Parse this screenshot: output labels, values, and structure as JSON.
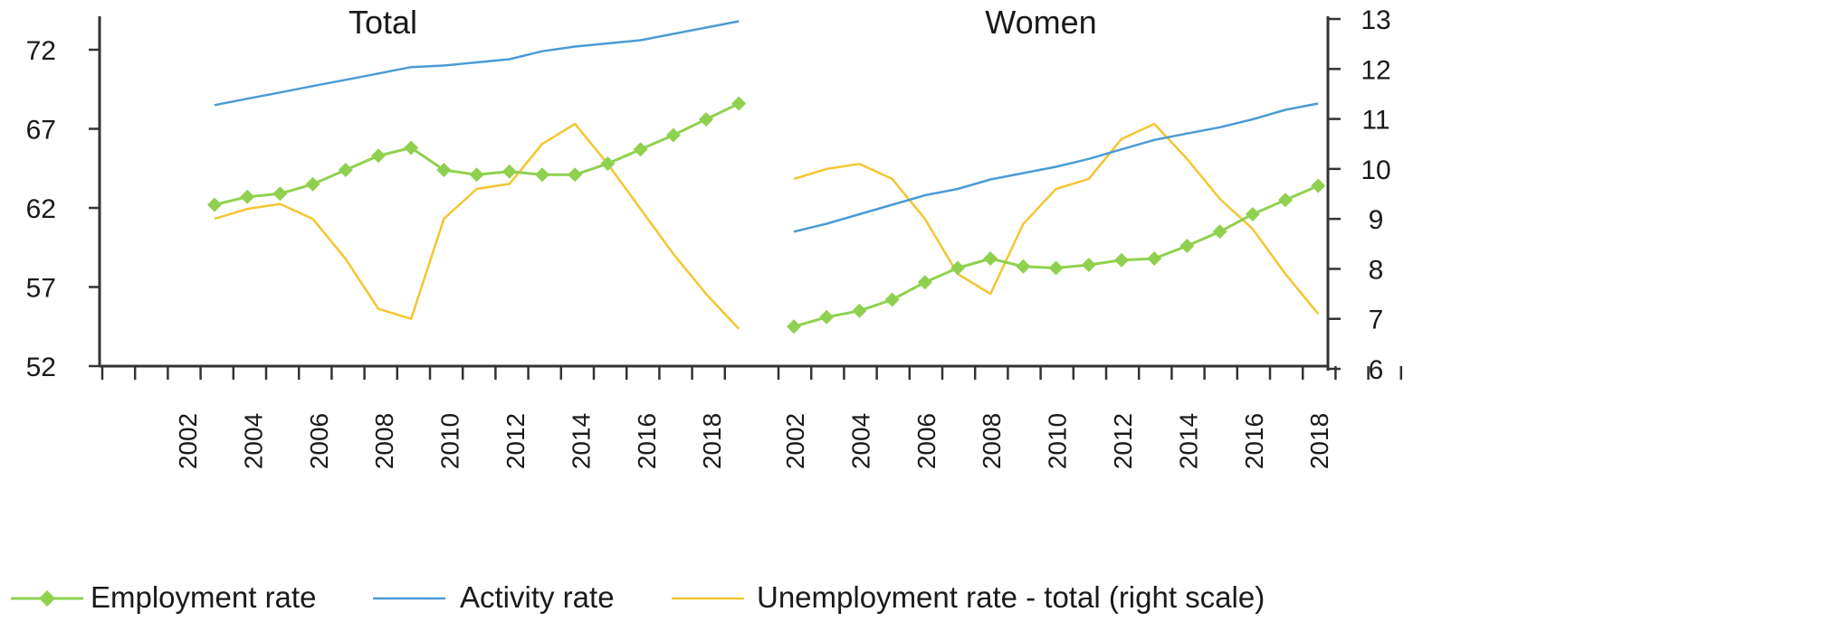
{
  "chart_data": {
    "type": "line",
    "panels": [
      {
        "title": "Total",
        "x_tick_labels": [
          "2002",
          "2004",
          "2006",
          "2008",
          "2010",
          "2012",
          "2014",
          "2016",
          "2018"
        ],
        "x": [
          2003,
          2004,
          2005,
          2006,
          2007,
          2008,
          2009,
          2010,
          2011,
          2012,
          2013,
          2014,
          2015,
          2016,
          2017,
          2018,
          2019
        ],
        "series": [
          {
            "name": "Employment rate",
            "axis": "left",
            "values": [
              62.2,
              62.7,
              62.9,
              63.5,
              64.4,
              65.3,
              65.8,
              64.4,
              64.1,
              64.3,
              64.1,
              64.1,
              64.8,
              65.7,
              66.6,
              67.6,
              68.6
            ]
          },
          {
            "name": "Activity rate",
            "axis": "left",
            "values": [
              68.5,
              68.9,
              69.3,
              69.7,
              70.1,
              70.5,
              70.9,
              71.0,
              71.2,
              71.4,
              71.9,
              72.2,
              72.4,
              72.6,
              73.0,
              73.4,
              73.8
            ]
          },
          {
            "name": "Unemployment rate - total (right scale)",
            "axis": "right",
            "values": [
              9.0,
              9.2,
              9.3,
              9.0,
              8.2,
              7.2,
              7.0,
              9.0,
              9.6,
              9.7,
              10.5,
              10.9,
              10.1,
              9.2,
              8.3,
              7.5,
              6.8
            ]
          }
        ]
      },
      {
        "title": "Women",
        "x_tick_labels": [
          "2002",
          "2004",
          "2006",
          "2008",
          "2010",
          "2012",
          "2014",
          "2016",
          "2018"
        ],
        "x": [
          2002,
          2003,
          2004,
          2005,
          2006,
          2007,
          2008,
          2009,
          2010,
          2011,
          2012,
          2013,
          2014,
          2015,
          2016,
          2017,
          2018
        ],
        "series": [
          {
            "name": "Employment rate",
            "axis": "left",
            "values": [
              54.5,
              55.1,
              55.5,
              56.2,
              57.3,
              58.2,
              58.8,
              58.3,
              58.2,
              58.4,
              58.7,
              58.8,
              59.6,
              60.5,
              61.6,
              62.5,
              63.4
            ]
          },
          {
            "name": "Activity rate",
            "axis": "left",
            "values": [
              60.5,
              61.0,
              61.6,
              62.2,
              62.8,
              63.2,
              63.8,
              64.2,
              64.6,
              65.1,
              65.7,
              66.3,
              66.7,
              67.1,
              67.6,
              68.2,
              68.6
            ]
          },
          {
            "name": "Unemployment rate - total (right scale)",
            "axis": "right",
            "values": [
              9.8,
              10.0,
              10.1,
              9.8,
              9.0,
              7.9,
              7.5,
              8.9,
              9.6,
              9.8,
              10.6,
              10.9,
              10.2,
              9.4,
              8.8,
              7.9,
              7.1
            ]
          }
        ]
      }
    ],
    "y_left": {
      "ticks": [
        "52",
        "57",
        "62",
        "67",
        "72"
      ],
      "range": [
        52,
        74
      ]
    },
    "y_right": {
      "ticks": [
        "6",
        "7",
        "8",
        "9",
        "10",
        "11",
        "12",
        "13"
      ],
      "range": [
        6,
        13
      ]
    },
    "legend": {
      "placement": "bottom",
      "items": [
        "Employment rate",
        "Activity rate",
        "Unemployment rate - total (right scale)"
      ]
    },
    "colors": {
      "employment": "#8fd14f",
      "activity": "#4a9bd6",
      "unemployment": "#f5c530",
      "axis": "#333333"
    },
    "grid": false
  }
}
